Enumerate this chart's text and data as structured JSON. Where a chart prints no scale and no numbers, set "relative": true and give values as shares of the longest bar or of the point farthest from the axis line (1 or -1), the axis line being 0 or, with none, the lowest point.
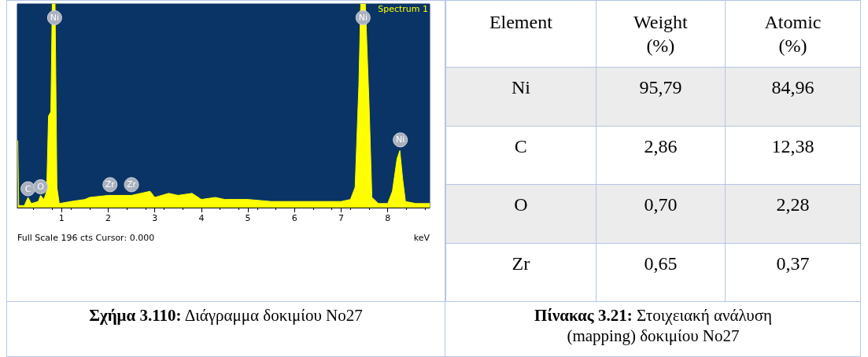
{
  "chart_data": [
    {
      "type": "area",
      "relative": true,
      "title": "Σχήμα 3.110:",
      "subtitle": "Διάγραμμα δοκιμίου No27",
      "xlabel": "keV",
      "xlim": [
        0.05,
        8.9
      ],
      "xticks": [
        1,
        2,
        3,
        4,
        5,
        6,
        7,
        8
      ],
      "annotations": [
        {
          "text": "C",
          "x": 0.28,
          "y": 0.05
        },
        {
          "text": "O",
          "x": 0.55,
          "y": 0.06
        },
        {
          "text": "Ni",
          "x": 0.85,
          "y": 0.89
        },
        {
          "text": "Zr",
          "x": 2.04,
          "y": 0.07
        },
        {
          "text": "Zr",
          "x": 2.5,
          "y": 0.07
        },
        {
          "text": "Ni",
          "x": 7.47,
          "y": 0.89
        },
        {
          "text": "Ni",
          "x": 8.27,
          "y": 0.29
        },
        "Full Scale 196 cts Cursor: 0.000"
      ],
      "series": [
        {
          "name": "Spectrum 1",
          "color": "#ffff00",
          "x": [
            0.06,
            0.08,
            0.2,
            0.28,
            0.35,
            0.5,
            0.55,
            0.62,
            0.68,
            0.72,
            0.77,
            0.8,
            0.86,
            0.9,
            0.95,
            1.2,
            1.5,
            1.6,
            2.0,
            2.5,
            2.9,
            3.0,
            3.3,
            3.5,
            3.8,
            4.0,
            4.3,
            4.5,
            5.0,
            5.5,
            6.0,
            6.5,
            7.0,
            7.2,
            7.3,
            7.38,
            7.42,
            7.52,
            7.6,
            7.66,
            7.8,
            8.0,
            8.1,
            8.2,
            8.26,
            8.32,
            8.38,
            8.6,
            8.9
          ],
          "values": [
            0.33,
            0.01,
            0.01,
            0.05,
            0.02,
            0.03,
            0.06,
            0.04,
            0.08,
            0.45,
            0.47,
            1.0,
            1.0,
            0.1,
            0.02,
            0.03,
            0.04,
            0.05,
            0.06,
            0.06,
            0.08,
            0.05,
            0.07,
            0.06,
            0.07,
            0.04,
            0.05,
            0.04,
            0.04,
            0.03,
            0.03,
            0.03,
            0.03,
            0.04,
            0.1,
            0.6,
            1.0,
            1.0,
            0.5,
            0.05,
            0.02,
            0.02,
            0.08,
            0.24,
            0.28,
            0.14,
            0.03,
            0.02,
            0.02
          ]
        }
      ]
    },
    {
      "type": "other",
      "title": "Πίνακας 3.21:",
      "subtitle": "Στοιχειακή ανάλυση (mapping) δοκιμίου No27",
      "xlabel": "Element",
      "categories": [
        "Ni",
        "C",
        "O",
        "Zr"
      ],
      "series": [
        {
          "name": "Weight (%)",
          "values": [
            95.79,
            2.86,
            0.7,
            0.65
          ],
          "value_labels": [
            "95,79",
            "2,86",
            "0,70",
            "0,65"
          ]
        },
        {
          "name": "Atomic (%)",
          "values": [
            84.96,
            12.38,
            2.28,
            0.37
          ],
          "value_labels": [
            "84,96",
            "12,38",
            "2,28",
            "0,37"
          ]
        }
      ]
    }
  ]
}
